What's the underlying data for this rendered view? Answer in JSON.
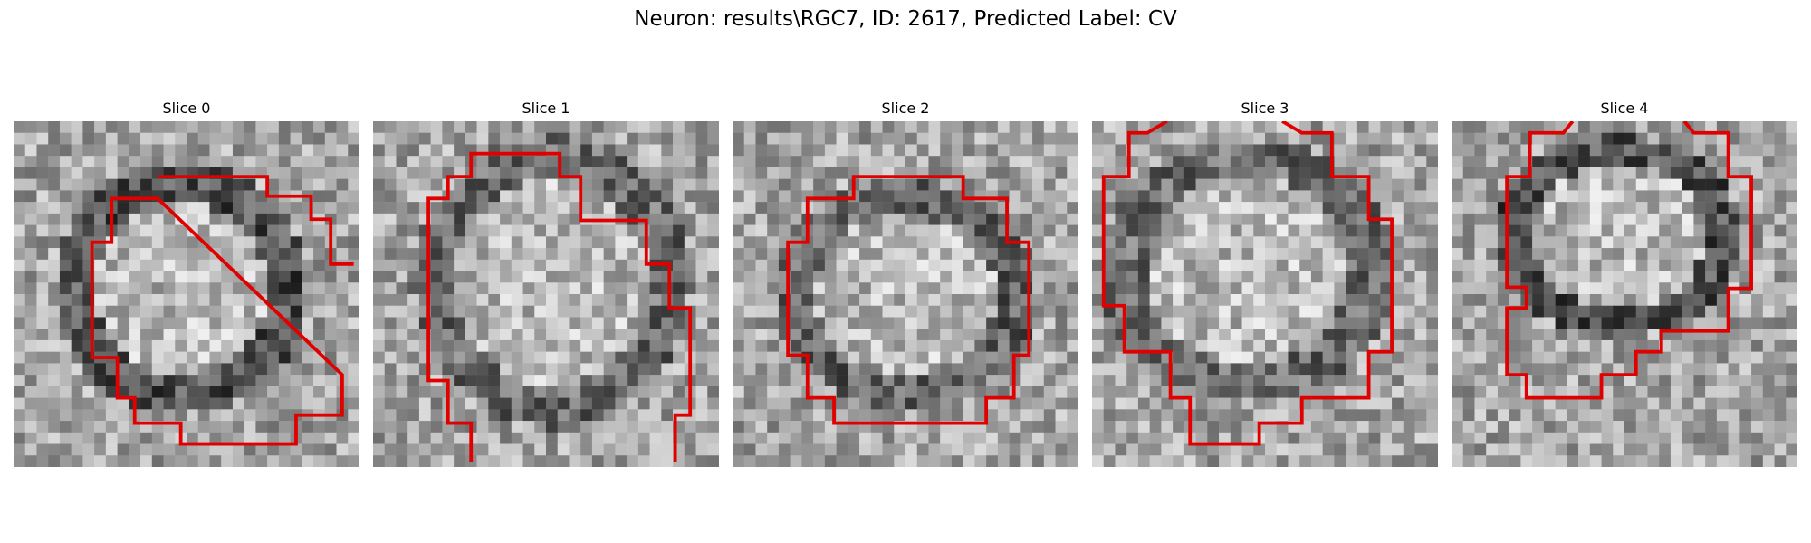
{
  "figure": {
    "title": "Neuron: results\\RGC7, ID: 2617, Predicted Label: CV"
  },
  "slices": [
    {
      "label": "Slice 0"
    },
    {
      "label": "Slice 1"
    },
    {
      "label": "Slice 2"
    },
    {
      "label": "Slice 3"
    },
    {
      "label": "Slice 4"
    }
  ],
  "colors": {
    "contour": "#e00000",
    "background": "#ffffff"
  }
}
